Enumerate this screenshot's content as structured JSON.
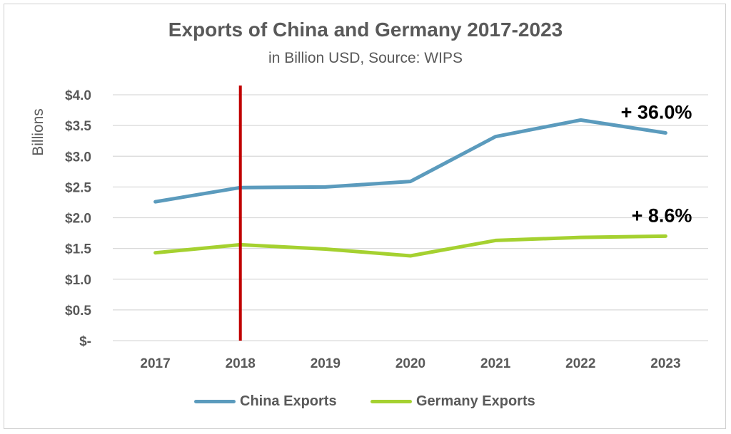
{
  "chart_data": {
    "type": "line",
    "title": "Exports of China and Germany 2017-2023",
    "subtitle": "in Billion USD, Source: WIPS",
    "ylabel": "Billions",
    "categories": [
      "2017",
      "2018",
      "2019",
      "2020",
      "2021",
      "2022",
      "2023"
    ],
    "ylim": [
      0,
      4.0
    ],
    "yticks": [
      0,
      0.5,
      1.0,
      1.5,
      2.0,
      2.5,
      3.0,
      3.5,
      4.0
    ],
    "ytick_labels": [
      "$-",
      "$0.5",
      "$1.0",
      "$1.5",
      "$2.0",
      "$2.5",
      "$3.0",
      "$3.5",
      "$4.0"
    ],
    "grid": true,
    "legend_position": "bottom",
    "series": [
      {
        "name": "China Exports",
        "color": "#5b9bbd",
        "values": [
          2.26,
          2.49,
          2.5,
          2.59,
          3.32,
          3.59,
          3.38
        ]
      },
      {
        "name": "Germany Exports",
        "color": "#a5d130",
        "values": [
          1.43,
          1.56,
          1.49,
          1.38,
          1.63,
          1.68,
          1.7
        ]
      }
    ],
    "reference_line": {
      "x": "2018",
      "color": "#c00000"
    },
    "annotations": [
      {
        "text": "+ 36.0%",
        "series": "China Exports"
      },
      {
        "text": "+ 8.6%",
        "series": "Germany Exports"
      }
    ]
  }
}
